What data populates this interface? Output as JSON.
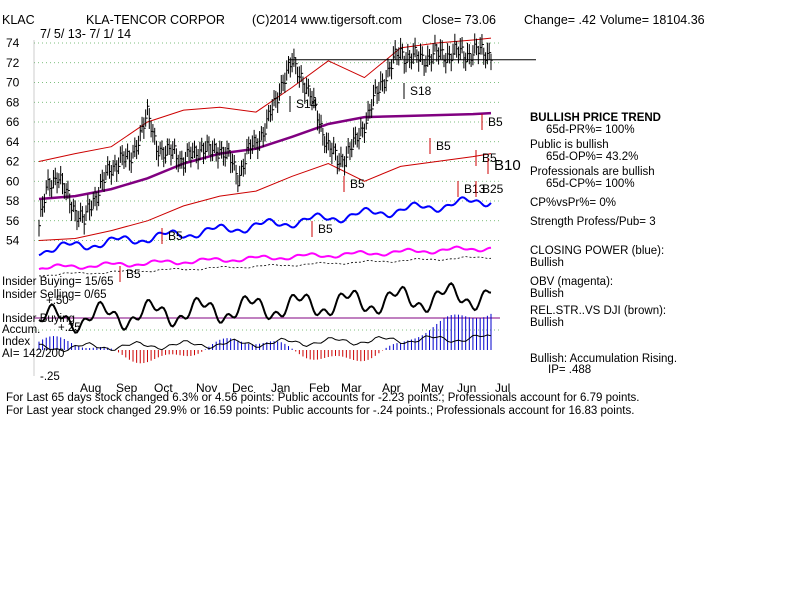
{
  "header": {
    "symbol": "KLAC",
    "company": "KLA-TENCOR CORPOR",
    "copyright": "(C)2014 www.tigersoft.com",
    "close": "Close=  73.06",
    "change": "Change= .42",
    "volume": "Volume= 18104.36",
    "date_range": "7/ 5/ 13-  7/ 1/ 14"
  },
  "chart_data": {
    "type": "line",
    "title": "KLAC  KLA-TENCOR CORPOR",
    "subtitle": "7/ 5/ 13-  7/ 1/ 14",
    "ylim": [
      52,
      75
    ],
    "y_ticks": [
      54,
      56,
      58,
      60,
      62,
      64,
      66,
      68,
      70,
      72,
      74
    ],
    "x_ticks": [
      "Aug",
      "Sep",
      "Oct",
      "Nov",
      "Dec",
      "Jan",
      "Feb",
      "Mar",
      "Apr",
      "May",
      "Jun",
      "Jul"
    ],
    "indicator_ticks": [
      "+.50",
      "+.25",
      "-.25"
    ],
    "grid": true,
    "series": [
      {
        "color": "#000000",
        "x": [
          0,
          5,
          10,
          15,
          20,
          25,
          30,
          35,
          40,
          45,
          50,
          55,
          60,
          65,
          70,
          75,
          80,
          85,
          90,
          95,
          100,
          105,
          110,
          115,
          120,
          125,
          130,
          135,
          140,
          145,
          150,
          155,
          160,
          165,
          170,
          175,
          180,
          185,
          190,
          195,
          200,
          205,
          210,
          215,
          220,
          225,
          230,
          235,
          240,
          245,
          250
        ],
        "values": [
          55.5,
          59.5,
          60.8,
          58.5,
          57.2,
          55.8,
          58.2,
          59.8,
          61.2,
          62.5,
          61.8,
          64.5,
          66.5,
          63.8,
          62.5,
          63.2,
          61.8,
          62.8,
          63.5,
          62.8,
          63.5,
          62.3,
          60.5,
          62.8,
          63.8,
          65.5,
          67.5,
          70.5,
          71.8,
          70.8,
          68.5,
          66.2,
          63.5,
          62.0,
          62.8,
          63.8,
          66.0,
          68.0,
          70.2,
          71.8,
          73.06,
          72.6,
          72.4,
          72.6,
          72.8,
          72.9,
          72.9,
          73.0,
          73.0,
          73.1,
          73.06
        ]
      },
      {
        "color": "#800080",
        "x": [
          0,
          20,
          40,
          60,
          80,
          100,
          120,
          140,
          160,
          180,
          200,
          220,
          240,
          250
        ],
        "values": [
          58.2,
          58.5,
          59.2,
          60.3,
          61.8,
          62.8,
          63.3,
          64.5,
          65.8,
          66.5,
          66.6,
          66.7,
          66.8,
          66.9
        ]
      },
      {
        "color": "#cc0000",
        "x": [
          0,
          20,
          40,
          60,
          80,
          100,
          120,
          140,
          160,
          180,
          200,
          220,
          240,
          250
        ],
        "values": [
          62.0,
          62.8,
          63.5,
          66.0,
          67.2,
          67.5,
          67.0,
          69.5,
          72.2,
          70.5,
          73.5,
          74.0,
          74.3,
          74.5
        ]
      },
      {
        "color": "#cc0000",
        "x": [
          0,
          20,
          40,
          60,
          80,
          100,
          120,
          140,
          160,
          180,
          200,
          220,
          240,
          250
        ],
        "values": [
          54.0,
          54.2,
          55.0,
          56.0,
          57.5,
          58.5,
          59.0,
          60.5,
          61.8,
          60.0,
          61.5,
          62.0,
          62.5,
          62.8
        ]
      }
    ],
    "indicators": {
      "closing_power_color": "#0000ff",
      "obv_color": "#ff00ff",
      "relstr_color": "#000000",
      "accumulation_color": "#0000cc",
      "distribution_color": "#cc0000"
    },
    "signals": [
      "S14",
      "S18",
      "B5",
      "B5",
      "B5",
      "B5",
      "B5",
      "B5",
      "B10",
      "B13",
      "B25",
      "B5"
    ],
    "resistance_line": 72.3
  },
  "right_panel": {
    "trend_title": "BULLISH PRICE TREND",
    "pr": "65d-PR%= 100%",
    "public_line": "Public is bullish",
    "op": "65d-OP%= 43.2%",
    "pros_line": "Professionals are bullish",
    "cp": "65d-CP%= 100%",
    "cpvspr": "CP%vsPr%=  0%",
    "strength": "Strength Profess/Pub= 3",
    "closing_power_title": "CLOSING POWER (blue):",
    "closing_power_val": "Bullish",
    "obv_title": "OBV (magenta):",
    "obv_val": "Bullish",
    "relstr_title": "REL.STR..VS DJI (brown):",
    "relstr_val": "Bullish",
    "accum_title": "Bullish: Accumulation Rising.",
    "ip": "IP=  .488"
  },
  "insider": {
    "buying": "Insider Buying= 15/65",
    "selling": "Insider Selling= 0/65",
    "buying2": "Insider Buying",
    "accum": "Accum.",
    "index": "Index",
    "ai": "AI= 142/200"
  },
  "footer": {
    "line1": "For Last 65 days stock changed  6.3% or  4.56 points:  Public accounts for -2.23 points.;  Professionals account for  6.79 points.",
    "line2": "For Last year stock changed  29.9% or  16.59 points:  Public accounts for -.24 points.;  Professionals account for  16.83 points."
  }
}
